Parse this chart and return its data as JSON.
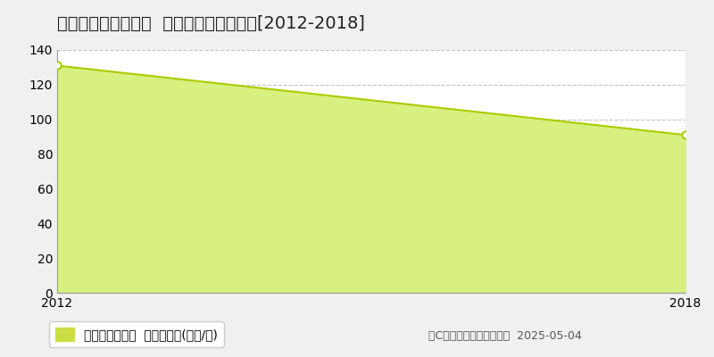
{
  "title": "西宮市仁川百合野町  マンション価格推移[2012-2018]",
  "x": [
    2012,
    2018
  ],
  "y": [
    131,
    91
  ],
  "xlim": [
    2012,
    2018
  ],
  "ylim": [
    0,
    140
  ],
  "yticks": [
    0,
    20,
    40,
    60,
    80,
    100,
    120,
    140
  ],
  "xticks": [
    2012,
    2018
  ],
  "line_color": "#aacc00",
  "fill_color": "#d8f080",
  "fill_alpha": 1.0,
  "marker": "o",
  "marker_size": 6,
  "marker_facecolor": "#ffffff",
  "marker_edgecolor": "#aacc00",
  "marker_edgewidth": 1.5,
  "grid_color": "#aaaaaa",
  "grid_style": "--",
  "grid_alpha": 0.7,
  "plot_bg_color": "#ffffff",
  "fig_bg_color": "#f0f0f0",
  "legend_label": "マンション価格  平均坪単価(万円/坪)",
  "legend_marker_color": "#ccdd44",
  "copyright": "（C）土地価格ドットコム  2025-05-04",
  "title_fontsize": 14,
  "tick_fontsize": 10,
  "legend_fontsize": 10,
  "copyright_fontsize": 9
}
